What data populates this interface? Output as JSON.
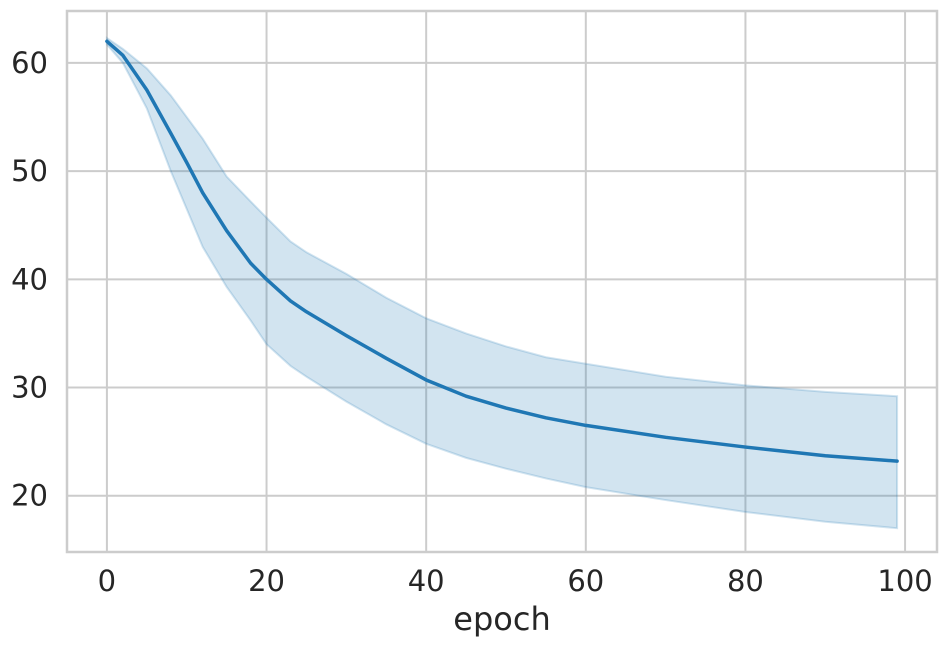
{
  "chart_data": {
    "type": "line",
    "title": "",
    "xlabel": "epoch",
    "ylabel": "",
    "xlim": [
      -5,
      104
    ],
    "ylim": [
      14.8,
      64.8
    ],
    "grid": true,
    "xticks": [
      0,
      20,
      40,
      60,
      80,
      100
    ],
    "yticks": [
      20,
      30,
      40,
      50,
      60
    ],
    "xtick_labels": [
      "0",
      "20",
      "40",
      "60",
      "80",
      "100"
    ],
    "ytick_labels": [
      "20",
      "30",
      "40",
      "50",
      "60"
    ],
    "colors": {
      "line": "#1f77b4",
      "band": "#1f77b4",
      "grid": "#cccccc",
      "spine": "#cccccc",
      "text": "#262626"
    },
    "series": [
      {
        "x": [
          0,
          2,
          5,
          8,
          10,
          12,
          15,
          18,
          20,
          23,
          25,
          30,
          35,
          40,
          45,
          50,
          55,
          60,
          70,
          80,
          90,
          99
        ],
        "y": [
          62.0,
          60.7,
          57.5,
          53.5,
          50.8,
          48.0,
          44.5,
          41.5,
          40.0,
          38.0,
          37.0,
          34.8,
          32.7,
          30.7,
          29.2,
          28.1,
          27.2,
          26.5,
          25.4,
          24.5,
          23.7,
          23.2
        ],
        "lower": [
          61.7,
          60.0,
          55.8,
          50.0,
          46.5,
          43.0,
          39.3,
          36.2,
          34.0,
          32.0,
          31.0,
          28.7,
          26.6,
          24.8,
          23.5,
          22.5,
          21.6,
          20.8,
          19.6,
          18.5,
          17.6,
          17.0
        ],
        "upper": [
          62.3,
          61.3,
          59.5,
          57.0,
          55.0,
          53.0,
          49.5,
          47.2,
          45.7,
          43.5,
          42.5,
          40.5,
          38.3,
          36.4,
          35.0,
          33.8,
          32.8,
          32.2,
          31.0,
          30.2,
          29.6,
          29.2
        ]
      }
    ]
  }
}
